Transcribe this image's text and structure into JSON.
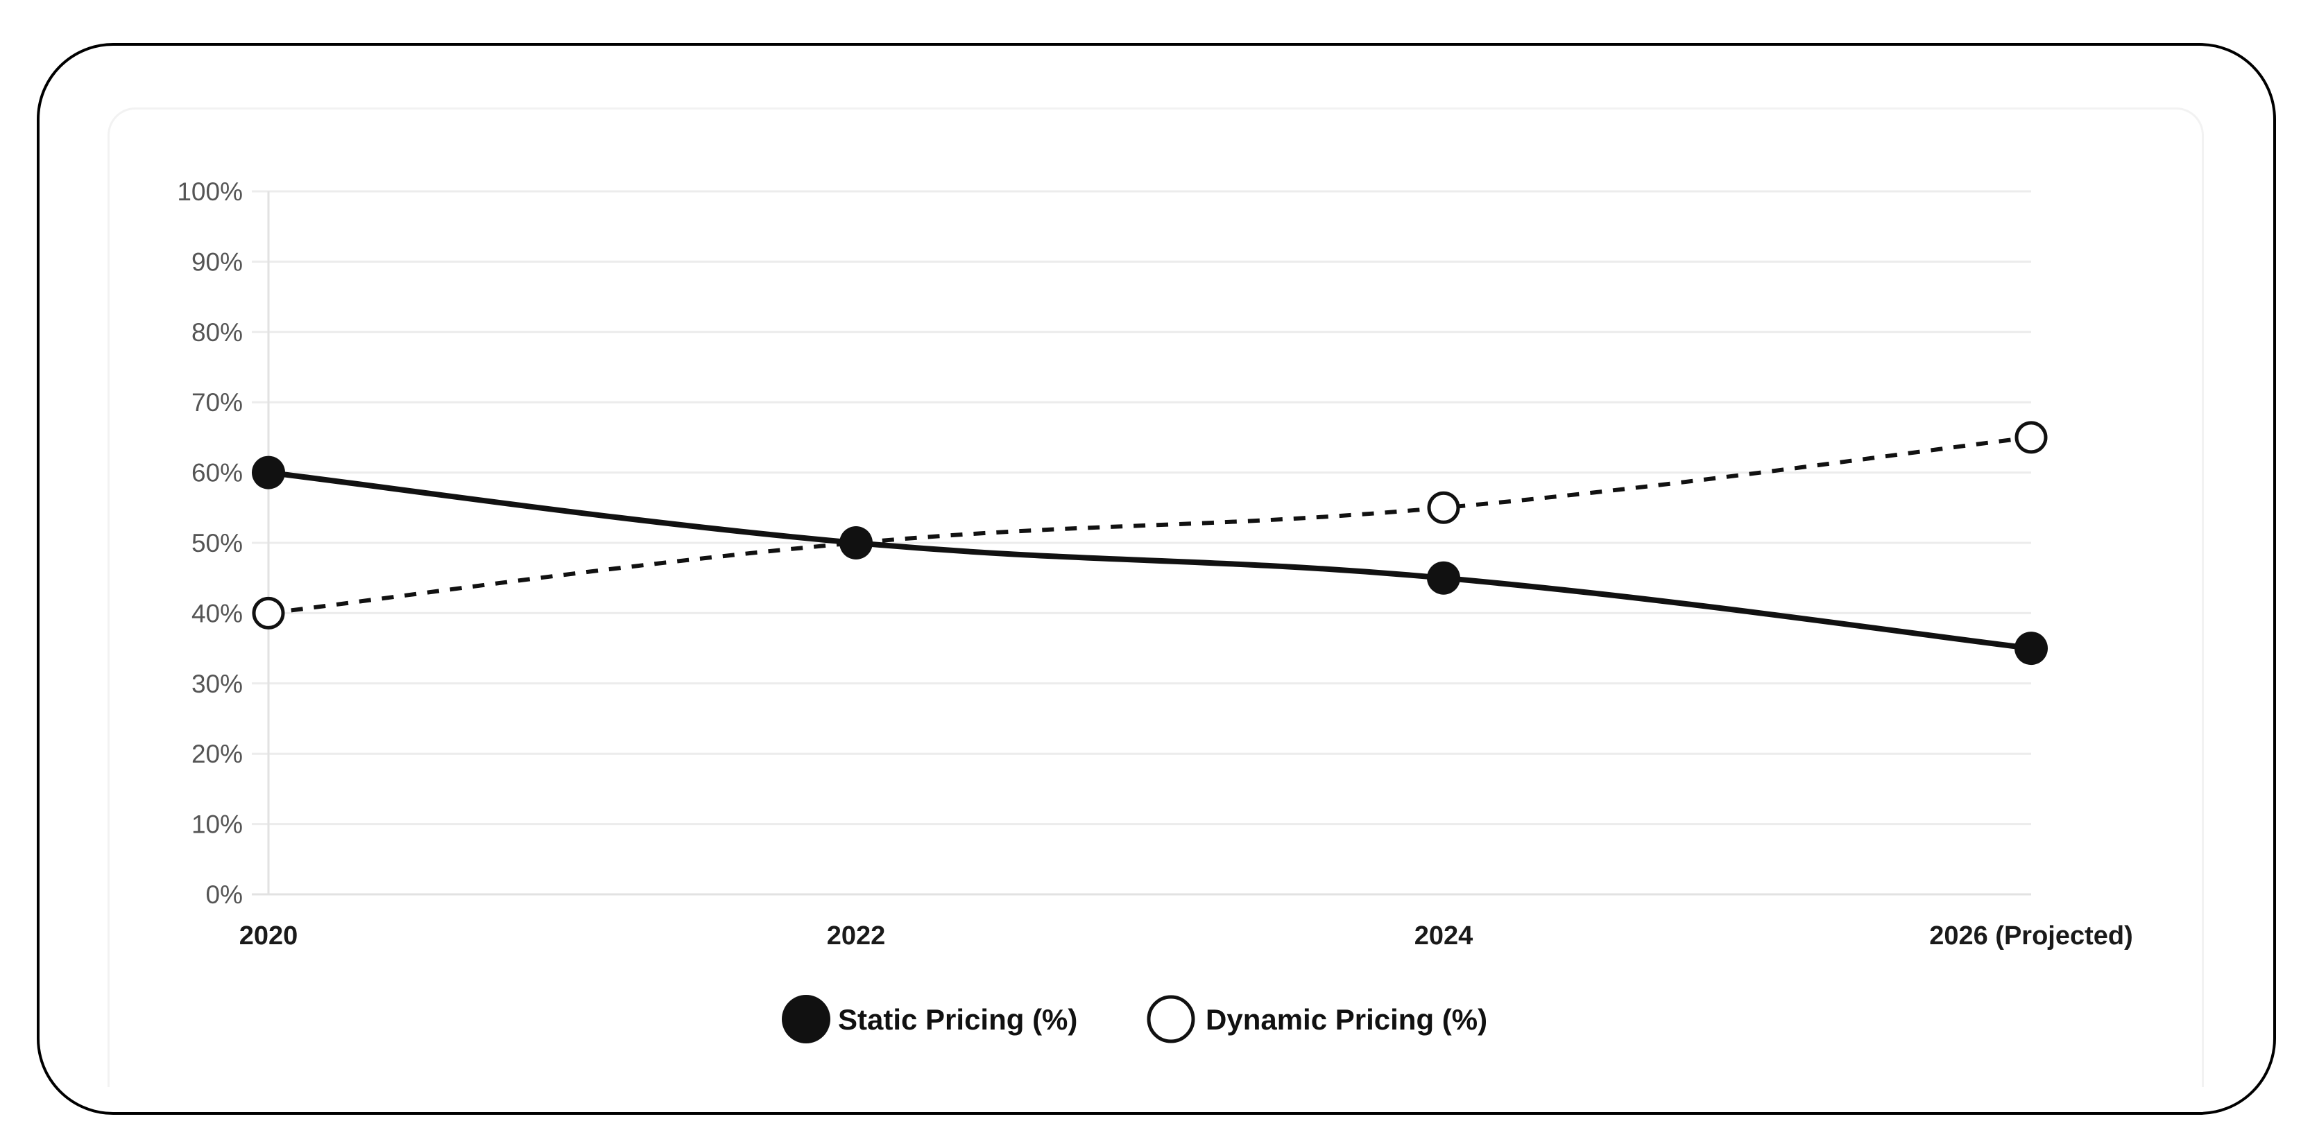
{
  "chart_data": {
    "type": "line",
    "title": "",
    "xlabel": "",
    "ylabel": "",
    "categories": [
      "2020",
      "2022",
      "2024",
      "2026 (Projected)"
    ],
    "series": [
      {
        "name": "Static Pricing (%)",
        "values": [
          60,
          50,
          45,
          35
        ],
        "style": "solid",
        "marker": "filled-circle",
        "color": "#111111"
      },
      {
        "name": "Dynamic Pricing (%)",
        "values": [
          40,
          50,
          55,
          65
        ],
        "style": "dashed",
        "marker": "hollow-circle",
        "color": "#111111"
      }
    ],
    "ylim": [
      0,
      100
    ],
    "y_ticks": [
      "0%",
      "10%",
      "20%",
      "30%",
      "40%",
      "50%",
      "60%",
      "70%",
      "80%",
      "90%",
      "100%"
    ],
    "grid": true,
    "legend_position": "bottom"
  },
  "colors": {
    "line": "#111111",
    "grid": "#ececec",
    "axis": "#e2e2e2",
    "y_label": "#555555",
    "x_label": "#1a1a1a"
  }
}
